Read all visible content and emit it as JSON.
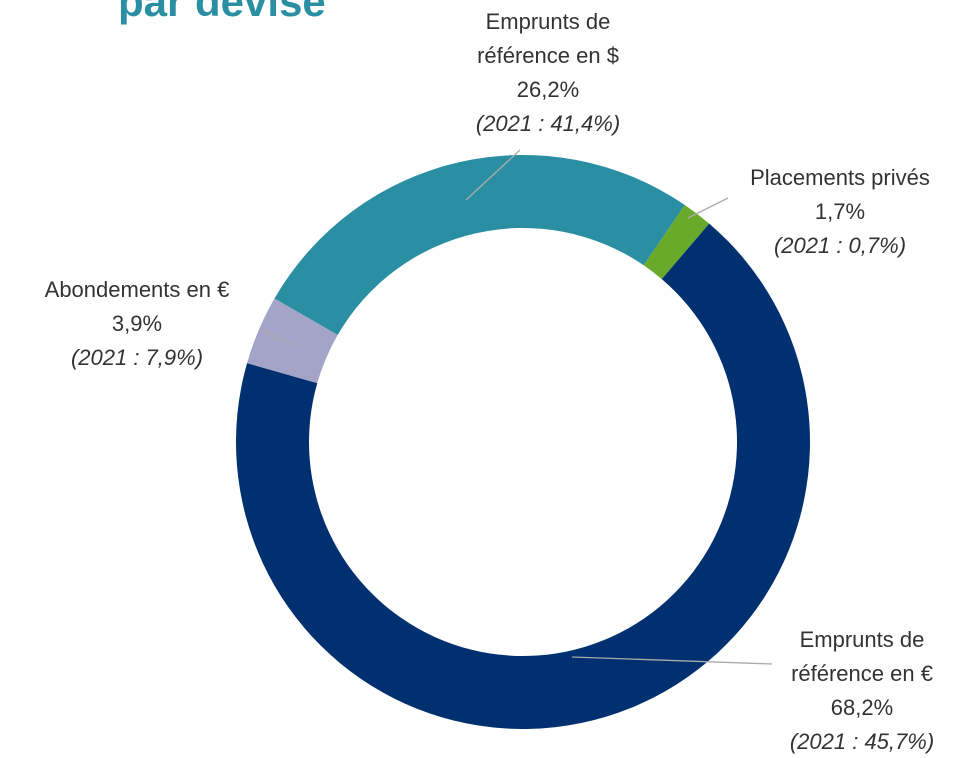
{
  "chart_data": {
    "type": "donut",
    "title": "par devise",
    "categories": [
      "Emprunts de référence en $",
      "Placements privés",
      "Emprunts de référence en €",
      "Abondements en €"
    ],
    "values": [
      26.2,
      1.7,
      68.2,
      3.9
    ],
    "value_labels": [
      "26,2%",
      "1,7%",
      "68,2%",
      "3,9%"
    ],
    "annotations": [
      "(2021 : 41,4%)",
      "(2021 : 0,7%)",
      "(2021 : 45,7%)",
      "(2021 : 7,9%)"
    ],
    "colors": [
      "#2a8fa3",
      "#6aaa2a",
      "#003070",
      "#a4a4c8"
    ]
  }
}
